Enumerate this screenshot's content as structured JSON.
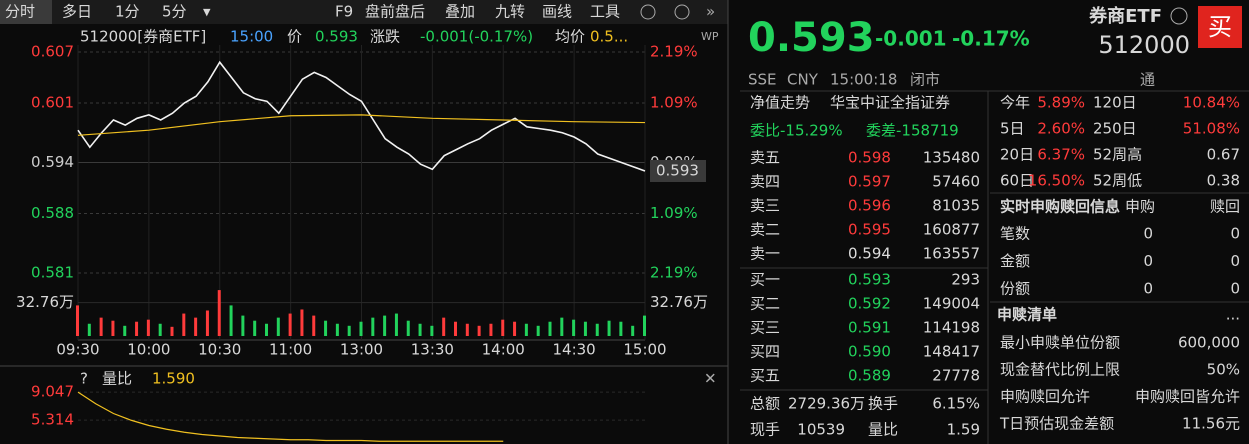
{
  "toolbar": {
    "left": [
      "分时",
      "多日",
      "1分",
      "5分",
      "▾"
    ],
    "right": [
      "F9",
      "盘前盘后",
      "叠加",
      "九转",
      "画线",
      "工具"
    ]
  },
  "chart_header": {
    "code": "512000[券商ETF]",
    "time": "15:00",
    "price_label": "价",
    "price": "0.593",
    "change_label": "涨跌",
    "change": "-0.001(-0.17%)",
    "avg_label": "均价",
    "avg": "0.5..."
  },
  "price_chart": {
    "times": [
      "09:30",
      "10:00",
      "10:30",
      "11:00",
      "13:00",
      "13:30",
      "14:00",
      "14:30",
      "15:00"
    ],
    "ylim": [
      0.581,
      0.607
    ],
    "yticks": [
      0.607,
      0.601,
      0.594,
      0.588,
      0.581
    ],
    "pct_ticks": [
      "2.19%",
      "1.09%",
      "0.00%",
      "1.09%",
      "2.19%"
    ],
    "last_price_tag": "0.593",
    "prices": [
      0.5978,
      0.5958,
      0.5975,
      0.599,
      0.5984,
      0.5992,
      0.5996,
      0.599,
      0.5998,
      0.601,
      0.6018,
      0.6035,
      0.6058,
      0.604,
      0.6022,
      0.6015,
      0.6012,
      0.5998,
      0.6018,
      0.6038,
      0.6046,
      0.604,
      0.603,
      0.602,
      0.6012,
      0.599,
      0.5968,
      0.5958,
      0.595,
      0.5938,
      0.5932,
      0.5948,
      0.5955,
      0.5962,
      0.5968,
      0.5978,
      0.5985,
      0.5992,
      0.5982,
      0.598,
      0.5978,
      0.5975,
      0.597,
      0.5962,
      0.595,
      0.5945,
      0.594,
      0.5935,
      0.593
    ],
    "avg_prices": [
      0.5972,
      0.5978,
      0.5988,
      0.5995,
      0.5996,
      0.5992,
      0.599,
      0.5988,
      0.5987
    ],
    "volume_ylim": [
      0,
      50
    ],
    "volume_ticks": [
      {
        "value": 32.76,
        "label": "32.76万"
      }
    ],
    "volumes": [
      30,
      12,
      18,
      15,
      10,
      14,
      16,
      12,
      9,
      22,
      18,
      25,
      45,
      30,
      20,
      15,
      12,
      18,
      22,
      26,
      20,
      15,
      12,
      10,
      14,
      18,
      20,
      22,
      15,
      12,
      10,
      18,
      14,
      12,
      10,
      12,
      16,
      14,
      12,
      10,
      14,
      18,
      16,
      14,
      12,
      15,
      14,
      10,
      20
    ]
  },
  "ratio_chart": {
    "help": "?",
    "label": "量比",
    "value": "1.590",
    "ylim": [
      0,
      10
    ],
    "yticks": [
      9.047,
      5.314
    ],
    "values": [
      9.047,
      7.5,
      6.2,
      5.3,
      4.6,
      4.1,
      3.7,
      3.4,
      3.2,
      3.0,
      2.9,
      2.8,
      2.7,
      2.7,
      2.6,
      2.6,
      2.6,
      2.5,
      2.5,
      2.5,
      2.5,
      2.5,
      2.5,
      2.5,
      2.5,
      null,
      null,
      null,
      null,
      null,
      null,
      null,
      null
    ]
  },
  "quote": {
    "price": "0.593",
    "change": "-0.001",
    "change_pct": "-0.17%",
    "name": "券商ETF",
    "code": "512000",
    "buy": "买",
    "exchange": "SSE",
    "currency": "CNY",
    "time": "15:00:18",
    "status": "闭市",
    "tong": "通"
  },
  "tabs": [
    "净值走势",
    "华宝中证全指证券"
  ],
  "order_book": {
    "wei_bi": "委比-15.29%",
    "wei_cha": "委差-158719",
    "asks": [
      [
        "卖五",
        "0.598",
        "135480"
      ],
      [
        "卖四",
        "0.597",
        "57460"
      ],
      [
        "卖三",
        "0.596",
        "81035"
      ],
      [
        "卖二",
        "0.595",
        "160877"
      ],
      [
        "卖一",
        "0.594",
        "163557"
      ]
    ],
    "bids": [
      [
        "买一",
        "0.593",
        "293"
      ],
      [
        "买二",
        "0.592",
        "149004"
      ],
      [
        "买三",
        "0.591",
        "114198"
      ],
      [
        "买四",
        "0.590",
        "148417"
      ],
      [
        "买五",
        "0.589",
        "27778"
      ]
    ]
  },
  "summary": [
    [
      "总额",
      "2729.36万",
      "换手",
      "6.15%"
    ],
    [
      "现手",
      "10539",
      "量比",
      "1.59"
    ]
  ],
  "performance": [
    [
      "今年",
      "5.89%",
      "120日",
      "10.84%"
    ],
    [
      "5日",
      "2.60%",
      "250日",
      "51.08%"
    ],
    [
      "20日",
      "6.37%",
      "52周高",
      "0.67"
    ],
    [
      "60日",
      "16.50%",
      "52周低",
      "0.38"
    ]
  ],
  "subscription": {
    "title": "实时申购赎回信息",
    "cols": [
      "申购",
      "赎回"
    ],
    "rows": [
      [
        "笔数",
        "0",
        "0"
      ],
      [
        "金额",
        "0",
        "0"
      ],
      [
        "份额",
        "0",
        "0"
      ]
    ]
  },
  "list": {
    "title": "申赎清单",
    "more": "...",
    "rows": [
      [
        "最小申赎单位份额",
        "600,000"
      ],
      [
        "现金替代比例上限",
        "50%"
      ],
      [
        "申购赎回允许",
        "申购赎回皆允许"
      ],
      [
        "T日预估现金差额",
        "11.56元"
      ]
    ]
  }
}
